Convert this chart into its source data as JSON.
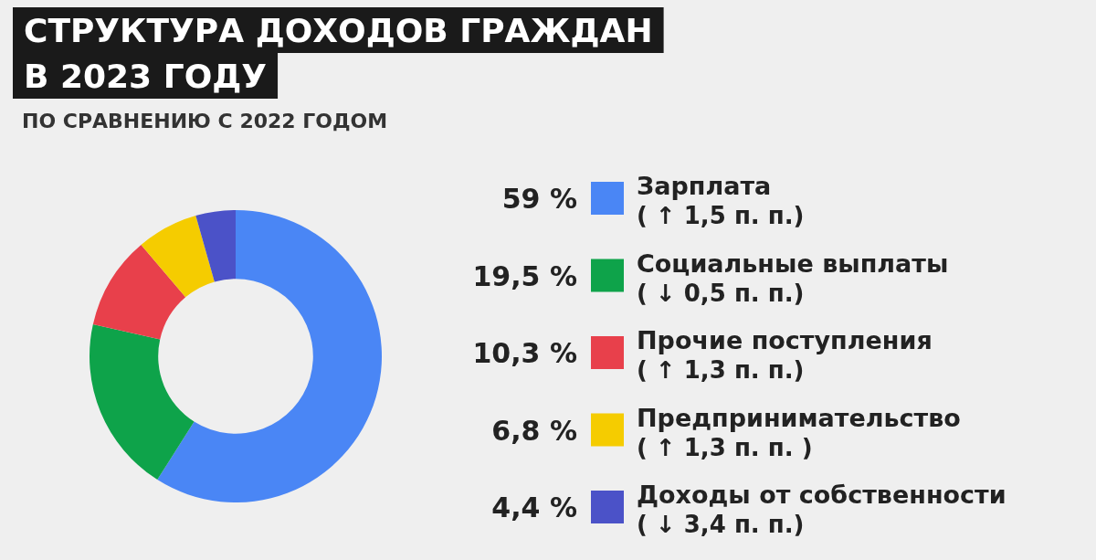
{
  "chart_data": {
    "type": "donut",
    "title": "СТРУКТУРА ДОХОДОВ ГРАЖДАН В 2023 ГОДУ",
    "subtitle": "ПО СРАВНЕНИЮ С 2022 ГОДОМ",
    "categories": [
      "Зарплата",
      "Социальные выплаты",
      "Прочие поступления",
      "Предпринимательство",
      "Доходы от собственности"
    ],
    "values": [
      59,
      19.5,
      10.3,
      6.8,
      4.4
    ],
    "value_labels": [
      "59 %",
      "19,5 %",
      "10,3 %",
      "6,8 %",
      "4,4 %"
    ],
    "colors": [
      "#4a86f5",
      "#0ea34a",
      "#e8404b",
      "#f5cc00",
      "#4b52c8"
    ],
    "annotations": [
      "( ↑ 1,5 п. п.)",
      "( ↓ 0,5 п. п.)",
      "( ↑ 1,3 п. п.)",
      "( ↑ 1,3 п. п. )",
      "( ↓ 3,4 п. п.)"
    ],
    "legend": "right"
  }
}
